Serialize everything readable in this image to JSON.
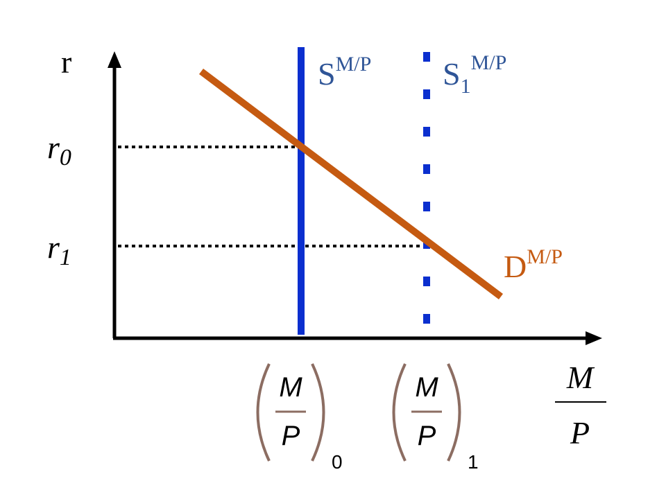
{
  "axes": {
    "y_label": "r",
    "x_label": {
      "numerator": "M",
      "denominator": "P"
    }
  },
  "levels": [
    {
      "symbol": "r",
      "subscript": "0"
    },
    {
      "symbol": "r",
      "subscript": "1"
    }
  ],
  "quantities": [
    {
      "numerator": "M",
      "denominator": "P",
      "subscript": "0"
    },
    {
      "numerator": "M",
      "denominator": "P",
      "subscript": "1"
    }
  ],
  "curves": [
    {
      "symbol": "S",
      "superscript": "M/P"
    },
    {
      "symbol": "S",
      "subscript": "1",
      "superscript": "M/P"
    },
    {
      "symbol": "D",
      "superscript": "M/P"
    }
  ]
}
